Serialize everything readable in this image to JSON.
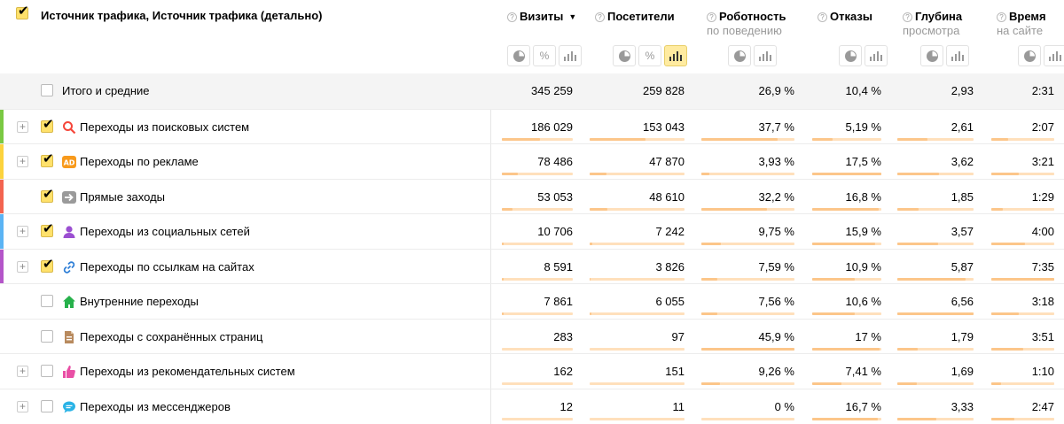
{
  "header": {
    "dimension_title": "Источник трафика, Источник трафика (детально)",
    "help_glyph": "?",
    "sort_arrow": "▼",
    "columns": [
      {
        "key": "visits",
        "label": "Визиты",
        "sub": "",
        "sorted": true
      },
      {
        "key": "visitors",
        "label": "Посетители",
        "sub": ""
      },
      {
        "key": "robots",
        "label": "Роботность",
        "sub": "по поведению"
      },
      {
        "key": "bounces",
        "label": "Отказы",
        "sub": ""
      },
      {
        "key": "depth",
        "label": "Глубина",
        "sub": "просмотра"
      },
      {
        "key": "time",
        "label": "Время",
        "sub": "на сайте"
      }
    ],
    "visits_buttons": [
      "pie",
      "percent",
      "bars"
    ],
    "visitors_buttons": [
      "pie",
      "percent",
      "bars-active"
    ],
    "percent_glyph": "%"
  },
  "total": {
    "label": "Итого и средние",
    "values": [
      "345 259",
      "259 828",
      "26,9 %",
      "10,4 %",
      "2,93",
      "2:31"
    ]
  },
  "rows": [
    {
      "label": "Переходы из поисковых систем",
      "expand": true,
      "checked": true,
      "icon": "search-icon",
      "stripe": "#7ac943",
      "values": [
        "186 029",
        "153 043",
        "37,7 %",
        "5,19 %",
        "2,61",
        "2:07"
      ],
      "fill": [
        0.54,
        0.59,
        0.82,
        0.3,
        0.4,
        0.27
      ]
    },
    {
      "label": "Переходы по рекламе",
      "expand": true,
      "checked": true,
      "icon": "ad-icon",
      "stripe": "#fcd33d",
      "values": [
        "78 486",
        "47 870",
        "3,93 %",
        "17,5 %",
        "3,62",
        "3:21"
      ],
      "fill": [
        0.23,
        0.18,
        0.09,
        1.0,
        0.55,
        0.43
      ]
    },
    {
      "label": "Прямые заходы",
      "expand": false,
      "checked": true,
      "icon": "arrow-right-icon",
      "stripe": "#f36450",
      "values": [
        "53 053",
        "48 610",
        "32,2 %",
        "16,8 %",
        "1,85",
        "1:29"
      ],
      "fill": [
        0.15,
        0.19,
        0.7,
        0.96,
        0.28,
        0.19
      ]
    },
    {
      "label": "Переходы из социальных сетей",
      "expand": true,
      "checked": true,
      "icon": "social-user-icon",
      "stripe": "#5bb4f4",
      "values": [
        "10 706",
        "7 242",
        "9,75 %",
        "15,9 %",
        "3,57",
        "4:00"
      ],
      "fill": [
        0.03,
        0.03,
        0.21,
        0.91,
        0.54,
        0.53
      ]
    },
    {
      "label": "Переходы по ссылкам на сайтах",
      "expand": true,
      "checked": true,
      "icon": "link-icon",
      "stripe": "#b455c9",
      "values": [
        "8 591",
        "3 826",
        "7,59 %",
        "10,9 %",
        "5,87",
        "7:35"
      ],
      "fill": [
        0.02,
        0.01,
        0.17,
        0.62,
        0.89,
        1.0
      ]
    },
    {
      "label": "Внутренние переходы",
      "expand": false,
      "checked": false,
      "icon": "home-icon",
      "stripe": "",
      "values": [
        "7 861",
        "6 055",
        "7,56 %",
        "10,6 %",
        "6,56",
        "3:18"
      ],
      "fill": [
        0.02,
        0.02,
        0.17,
        0.61,
        1.0,
        0.44
      ]
    },
    {
      "label": "Переходы с сохранённых страниц",
      "expand": false,
      "checked": false,
      "icon": "saved-page-icon",
      "stripe": "",
      "values": [
        "283",
        "97",
        "45,9 %",
        "17 %",
        "1,79",
        "3:51"
      ],
      "fill": [
        0.0,
        0.0,
        1.0,
        0.97,
        0.27,
        0.51
      ]
    },
    {
      "label": "Переходы из рекомендательных систем",
      "expand": true,
      "checked": false,
      "icon": "thumbs-up-icon",
      "stripe": "",
      "values": [
        "162",
        "151",
        "9,26 %",
        "7,41 %",
        "1,69",
        "1:10"
      ],
      "fill": [
        0.0,
        0.0,
        0.2,
        0.42,
        0.26,
        0.15
      ]
    },
    {
      "label": "Переходы из мессенджеров",
      "expand": true,
      "checked": false,
      "icon": "chat-bubble-icon",
      "stripe": "",
      "values": [
        "12",
        "11",
        "0 %",
        "16,7 %",
        "3,33",
        "2:47"
      ],
      "fill": [
        0.0,
        0.0,
        0.0,
        0.95,
        0.51,
        0.37
      ]
    }
  ]
}
